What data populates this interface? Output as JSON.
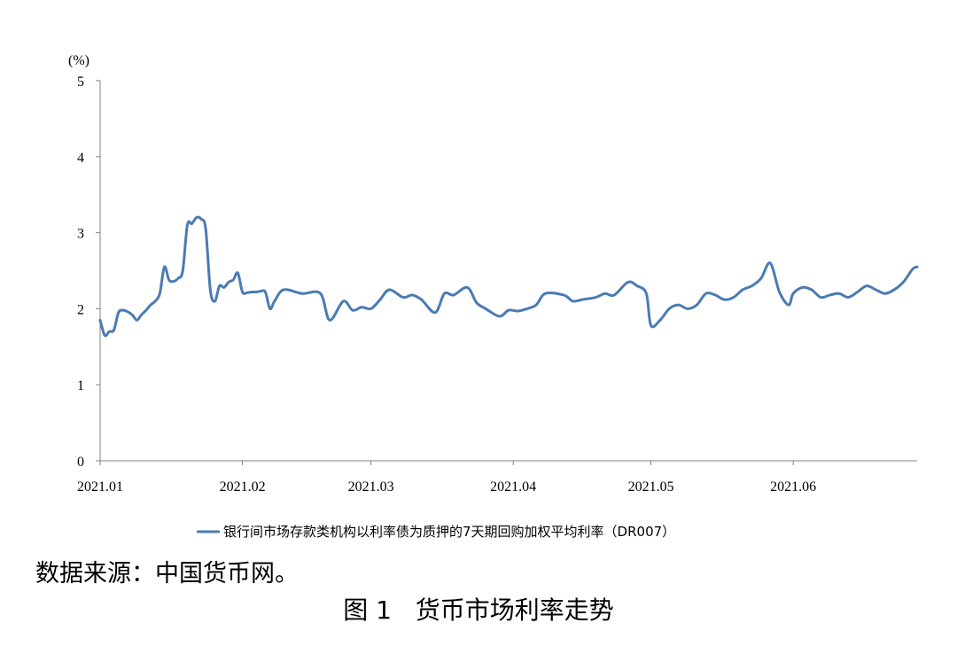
{
  "chart_data": {
    "type": "line",
    "unit_label": "(%)",
    "ylim": [
      0,
      5
    ],
    "yticks": [
      0,
      1,
      2,
      3,
      4,
      5
    ],
    "xlim": [
      "2021-01-01",
      "2021-06-28"
    ],
    "xtick_labels": [
      "2021.01",
      "2021.02",
      "2021.03",
      "2021.04",
      "2021.05",
      "2021.06"
    ],
    "xtick_dates": [
      "2021-01-01",
      "2021-02-01",
      "2021-03-01",
      "2021-04-01",
      "2021-05-01",
      "2021-06-01"
    ],
    "grid": false,
    "legend_position": "bottom",
    "series": [
      {
        "name": "银行间市场存款类机构以利率债为质押的7天期回购加权平均利率（DR007）",
        "color": "#4a7bb2",
        "x": [
          "2021-01-01",
          "2021-01-02",
          "2021-01-03",
          "2021-01-04",
          "2021-01-05",
          "2021-01-06",
          "2021-01-07",
          "2021-01-08",
          "2021-01-09",
          "2021-01-10",
          "2021-01-11",
          "2021-01-12",
          "2021-01-13",
          "2021-01-14",
          "2021-01-15",
          "2021-01-16",
          "2021-01-17",
          "2021-01-18",
          "2021-01-19",
          "2021-01-20",
          "2021-01-21",
          "2021-01-22",
          "2021-01-23",
          "2021-01-24",
          "2021-01-25",
          "2021-01-26",
          "2021-01-27",
          "2021-01-28",
          "2021-01-29",
          "2021-01-30",
          "2021-01-31",
          "2021-02-01",
          "2021-02-02",
          "2021-02-03",
          "2021-02-04",
          "2021-02-05",
          "2021-02-06",
          "2021-02-07",
          "2021-02-08",
          "2021-02-10",
          "2021-02-14",
          "2021-02-18",
          "2021-02-20",
          "2021-02-23",
          "2021-02-25",
          "2021-02-27",
          "2021-03-01",
          "2021-03-03",
          "2021-03-05",
          "2021-03-08",
          "2021-03-10",
          "2021-03-12",
          "2021-03-15",
          "2021-03-17",
          "2021-03-19",
          "2021-03-22",
          "2021-03-24",
          "2021-03-26",
          "2021-03-29",
          "2021-03-31",
          "2021-04-02",
          "2021-04-04",
          "2021-04-06",
          "2021-04-08",
          "2021-04-12",
          "2021-04-14",
          "2021-04-16",
          "2021-04-19",
          "2021-04-21",
          "2021-04-23",
          "2021-04-26",
          "2021-04-28",
          "2021-04-30",
          "2021-05-01",
          "2021-05-03",
          "2021-05-05",
          "2021-05-07",
          "2021-05-09",
          "2021-05-11",
          "2021-05-13",
          "2021-05-15",
          "2021-05-17",
          "2021-05-19",
          "2021-05-21",
          "2021-05-23",
          "2021-05-25",
          "2021-05-27",
          "2021-05-29",
          "2021-05-31",
          "2021-06-01",
          "2021-06-03",
          "2021-06-05",
          "2021-06-07",
          "2021-06-09",
          "2021-06-11",
          "2021-06-13",
          "2021-06-15",
          "2021-06-17",
          "2021-06-19",
          "2021-06-21",
          "2021-06-23",
          "2021-06-25",
          "2021-06-27",
          "2021-06-28"
        ],
        "values": [
          1.85,
          1.65,
          1.7,
          1.72,
          1.95,
          1.98,
          1.96,
          1.92,
          1.85,
          1.92,
          1.98,
          2.05,
          2.1,
          2.2,
          2.55,
          2.38,
          2.36,
          2.4,
          2.5,
          3.1,
          3.12,
          3.2,
          3.18,
          3.05,
          2.25,
          2.1,
          2.3,
          2.28,
          2.35,
          2.38,
          2.47,
          2.22,
          2.21,
          2.22,
          2.22,
          2.23,
          2.22,
          2.0,
          2.1,
          2.25,
          2.2,
          2.2,
          1.85,
          2.1,
          1.98,
          2.02,
          2.0,
          2.12,
          2.25,
          2.15,
          2.18,
          2.12,
          1.95,
          2.2,
          2.18,
          2.28,
          2.08,
          2.0,
          1.9,
          1.98,
          1.97,
          2.0,
          2.05,
          2.2,
          2.18,
          2.1,
          2.12,
          2.15,
          2.2,
          2.18,
          2.35,
          2.3,
          2.2,
          1.78,
          1.85,
          2.0,
          2.05,
          2.0,
          2.05,
          2.2,
          2.18,
          2.12,
          2.15,
          2.25,
          2.3,
          2.4,
          2.6,
          2.22,
          2.05,
          2.2,
          2.28,
          2.25,
          2.15,
          2.18,
          2.2,
          2.15,
          2.22,
          2.3,
          2.25,
          2.2,
          2.25,
          2.35,
          2.52,
          2.55
        ]
      }
    ]
  },
  "note": "数据来源：中国货币网。",
  "caption": "图 1   货币市场利率走势"
}
